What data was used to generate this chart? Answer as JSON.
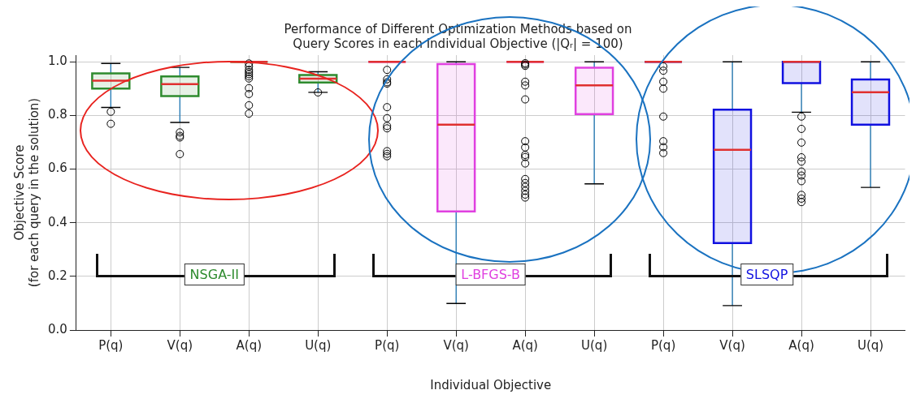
{
  "chart_data": {
    "type": "box",
    "title": "Performance of Different Optimization Methods based on\nQuery Scores in each Individual Objective (|Qᵣ| = 100)",
    "xlabel": "Individual Objective",
    "ylabel": "Objective Score\n(for each query in the solution)",
    "categories": [
      "P(q)",
      "V(q)",
      "A(q)",
      "U(q)",
      "P(q)",
      "V(q)",
      "A(q)",
      "U(q)",
      "P(q)",
      "V(q)",
      "A(q)",
      "U(q)"
    ],
    "ylim": [
      0,
      1.025
    ],
    "yticks": [
      {
        "value": 0,
        "label": "0.0"
      },
      {
        "value": 0.2,
        "label": "0.2"
      },
      {
        "value": 0.4,
        "label": "0.4"
      },
      {
        "value": 0.6,
        "label": "0.6"
      },
      {
        "value": 0.8,
        "label": "0.8"
      },
      {
        "value": 1,
        "label": "1.0"
      }
    ],
    "grid": true,
    "legend": false,
    "series": [
      {
        "name": "NSGA-II",
        "color": "#2e8b2e",
        "boxes": [
          {
            "low": 0.83,
            "q1": 0.9,
            "median": 0.93,
            "q3": 0.957,
            "high": 0.994,
            "outliers": [
              0.814,
              0.769
            ]
          },
          {
            "low": 0.774,
            "q1": 0.872,
            "median": 0.917,
            "q3": 0.946,
            "high": 0.979,
            "outliers": [
              0.737,
              0.724,
              0.718,
              0.656
            ]
          },
          {
            "low": 1.0,
            "q1": 1.0,
            "median": 1.0,
            "q3": 1.0,
            "high": 1.0,
            "outliers": [
              0.994,
              0.983,
              0.97,
              0.962,
              0.954,
              0.946,
              0.938,
              0.902,
              0.88,
              0.838,
              0.807
            ]
          },
          {
            "low": 0.886,
            "q1": 0.923,
            "median": 0.937,
            "q3": 0.951,
            "high": 0.963,
            "outliers": [
              0.886
            ]
          },
          null,
          null,
          null,
          null,
          null,
          null,
          null,
          null
        ]
      },
      {
        "name": "L-BFGS-B",
        "color": "#e040e0",
        "boxes": [
          null,
          null,
          null,
          null,
          {
            "low": 1.0,
            "q1": 1.0,
            "median": 1.0,
            "q3": 1.0,
            "high": 1.0,
            "outliers": [
              0.97,
              0.935,
              0.924,
              0.919,
              0.831,
              0.79,
              0.761,
              0.752,
              0.667,
              0.657,
              0.648
            ]
          },
          {
            "low": 0.099,
            "q1": 0.442,
            "median": 0.766,
            "q3": 0.992,
            "high": 1.0
          },
          {
            "low": 1.0,
            "q1": 1.0,
            "median": 1.0,
            "q3": 1.0,
            "high": 1.0,
            "outliers": [
              0.995,
              0.99,
              0.985,
              0.926,
              0.912,
              0.86,
              0.704,
              0.681,
              0.653,
              0.645,
              0.621,
              0.563,
              0.548,
              0.534,
              0.519,
              0.505,
              0.494
            ]
          },
          {
            "low": 0.545,
            "q1": 0.805,
            "median": 0.912,
            "q3": 0.978,
            "high": 1.0
          },
          null,
          null,
          null,
          null
        ]
      },
      {
        "name": "SLSQP",
        "color": "#1010e0",
        "boxes": [
          null,
          null,
          null,
          null,
          null,
          null,
          null,
          null,
          {
            "low": 1.0,
            "q1": 1.0,
            "median": 1.0,
            "q3": 1.0,
            "high": 1.0,
            "outliers": [
              0.983,
              0.967,
              0.926,
              0.9,
              0.796,
              0.704,
              0.682,
              0.66
            ]
          },
          {
            "low": 0.091,
            "q1": 0.324,
            "median": 0.672,
            "q3": 0.822,
            "high": 1.0
          },
          {
            "low": 0.812,
            "q1": 0.921,
            "median": 1.0,
            "q3": 1.0,
            "high": 1.0,
            "outliers": [
              0.796,
              0.75,
              0.699,
              0.644,
              0.628,
              0.591,
              0.576,
              0.555,
              0.504,
              0.49,
              0.477
            ]
          },
          {
            "low": 0.532,
            "q1": 0.766,
            "median": 0.887,
            "q3": 0.934,
            "high": 1.0
          }
        ]
      }
    ]
  }
}
